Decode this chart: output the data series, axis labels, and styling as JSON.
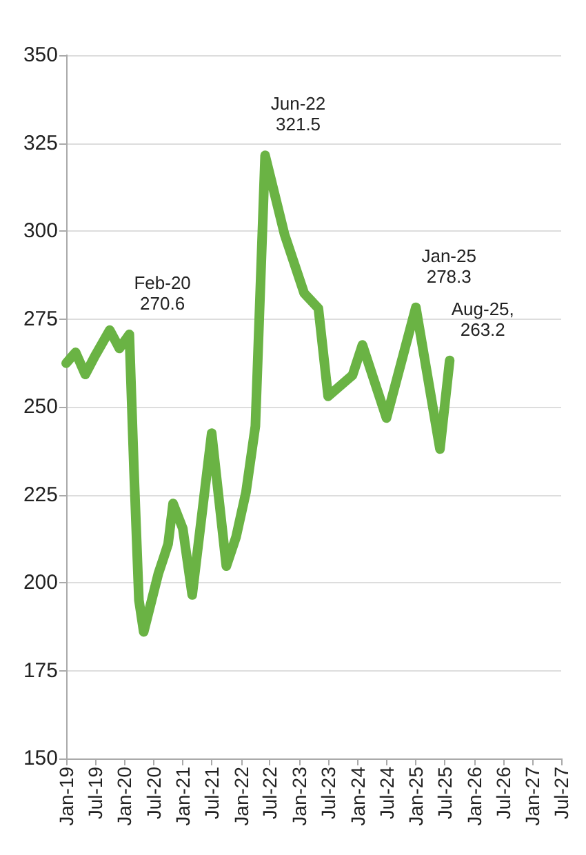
{
  "chart_data": {
    "type": "line",
    "x": [
      "2019-01",
      "2019-03",
      "2019-05",
      "2019-07",
      "2019-10",
      "2019-12",
      "2020-02",
      "2020-03",
      "2020-04",
      "2020-05",
      "2020-08",
      "2020-09",
      "2020-10",
      "2020-11",
      "2021-01",
      "2021-03",
      "2021-07",
      "2021-10",
      "2021-12",
      "2022-02",
      "2022-04",
      "2022-06",
      "2022-10",
      "2023-02",
      "2023-05",
      "2023-07",
      "2023-12",
      "2024-02",
      "2024-07",
      "2025-01",
      "2025-06",
      "2025-08"
    ],
    "series": [
      {
        "color": "#6ab344",
        "values": [
          262.4,
          265.5,
          259.2,
          264.5,
          271.8,
          266.6,
          270.6,
          232,
          195,
          186,
          202.6,
          206.8,
          211,
          222.5,
          215.4,
          196.5,
          242.5,
          204.7,
          213,
          225.7,
          244.5,
          321.5,
          299,
          282.3,
          278,
          253,
          259,
          267.6,
          246.8,
          278.3,
          238,
          263.2
        ]
      }
    ],
    "xlim": [
      "2019-01",
      "2027-07"
    ],
    "xticks": [
      {
        "value": "2019-01",
        "label": "Jan-19"
      },
      {
        "value": "2019-07",
        "label": "Jul-19"
      },
      {
        "value": "2020-01",
        "label": "Jan-20"
      },
      {
        "value": "2020-07",
        "label": "Jul-20"
      },
      {
        "value": "2021-01",
        "label": "Jan-21"
      },
      {
        "value": "2021-07",
        "label": "Jul-21"
      },
      {
        "value": "2022-01",
        "label": "Jan-22"
      },
      {
        "value": "2022-07",
        "label": "Jul-22"
      },
      {
        "value": "2023-01",
        "label": "Jan-23"
      },
      {
        "value": "2023-07",
        "label": "Jul-23"
      },
      {
        "value": "2024-01",
        "label": "Jan-24"
      },
      {
        "value": "2024-07",
        "label": "Jul-24"
      },
      {
        "value": "2025-01",
        "label": "Jan-25"
      },
      {
        "value": "2025-07",
        "label": "Jul-25"
      },
      {
        "value": "2026-01",
        "label": "Jan-26"
      },
      {
        "value": "2026-07",
        "label": "Jul-26"
      },
      {
        "value": "2027-01",
        "label": "Jan-27"
      },
      {
        "value": "2027-07",
        "label": "Jul-27"
      }
    ],
    "ylim": [
      150,
      350
    ],
    "yticks": [
      150,
      175,
      200,
      225,
      250,
      275,
      300,
      325,
      350
    ],
    "grid": "y",
    "line_style": "solid",
    "annotations": [
      {
        "text": "Feb-20\n270.6",
        "x": "2020-02",
        "y": 270.6
      },
      {
        "text": "Jun-22\n321.5",
        "x": "2022-06",
        "y": 321.5
      },
      {
        "text": "Jan-25\n278.3",
        "x": "2025-01",
        "y": 278.3
      },
      {
        "text": "Aug-25,\n263.2",
        "x": "2025-08",
        "y": 263.2
      }
    ]
  }
}
